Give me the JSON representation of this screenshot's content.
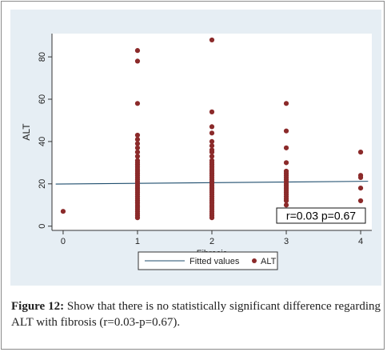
{
  "caption": {
    "label": "Figure 12:",
    "text": " Show that there is no statistically significant difference regarding ALT with fibrosis (r=0.03-p=0.67)."
  },
  "annotation": "r=0.03  p=0.67",
  "colors": {
    "panel_bg": "#e6eef4",
    "plot_bg": "#ffffff",
    "points": "#8b2a2a",
    "fit_line": "#1f4e6e"
  },
  "chart_data": {
    "type": "scatter",
    "title": "",
    "xlabel": "Fibrosis",
    "ylabel": "ALT",
    "xlim": [
      -0.15,
      4.15
    ],
    "ylim": [
      -2,
      91
    ],
    "x_ticks": [
      0,
      1,
      2,
      3,
      4
    ],
    "y_ticks": [
      0,
      20,
      40,
      60,
      80
    ],
    "grid": false,
    "legend_position": "bottom",
    "series": [
      {
        "name": "ALT",
        "type": "scatter",
        "points": [
          [
            0,
            7
          ],
          [
            1,
            83
          ],
          [
            1,
            78
          ],
          [
            1,
            58
          ],
          [
            1,
            43
          ],
          [
            1,
            41
          ],
          [
            1,
            39
          ],
          [
            1,
            37
          ],
          [
            1,
            35
          ],
          [
            1,
            33
          ],
          [
            1,
            31
          ],
          [
            1,
            30
          ],
          [
            1,
            29
          ],
          [
            1,
            28
          ],
          [
            1,
            27
          ],
          [
            1,
            26
          ],
          [
            1,
            25
          ],
          [
            1,
            24
          ],
          [
            1,
            23
          ],
          [
            1,
            22
          ],
          [
            1,
            21
          ],
          [
            1,
            20
          ],
          [
            1,
            19
          ],
          [
            1,
            18
          ],
          [
            1,
            17
          ],
          [
            1,
            16
          ],
          [
            1,
            15
          ],
          [
            1,
            14
          ],
          [
            1,
            13
          ],
          [
            1,
            12
          ],
          [
            1,
            11
          ],
          [
            1,
            10
          ],
          [
            1,
            9
          ],
          [
            1,
            8
          ],
          [
            1,
            7
          ],
          [
            1,
            6
          ],
          [
            1,
            5
          ],
          [
            1,
            4
          ],
          [
            2,
            88
          ],
          [
            2,
            54
          ],
          [
            2,
            47
          ],
          [
            2,
            44
          ],
          [
            2,
            40
          ],
          [
            2,
            38
          ],
          [
            2,
            36
          ],
          [
            2,
            35
          ],
          [
            2,
            33
          ],
          [
            2,
            31
          ],
          [
            2,
            30
          ],
          [
            2,
            29
          ],
          [
            2,
            28
          ],
          [
            2,
            27
          ],
          [
            2,
            26
          ],
          [
            2,
            25
          ],
          [
            2,
            24
          ],
          [
            2,
            23
          ],
          [
            2,
            22
          ],
          [
            2,
            21
          ],
          [
            2,
            20
          ],
          [
            2,
            19
          ],
          [
            2,
            18
          ],
          [
            2,
            17
          ],
          [
            2,
            16
          ],
          [
            2,
            15
          ],
          [
            2,
            14
          ],
          [
            2,
            13
          ],
          [
            2,
            12
          ],
          [
            2,
            11
          ],
          [
            2,
            10
          ],
          [
            2,
            9
          ],
          [
            2,
            8
          ],
          [
            2,
            7
          ],
          [
            2,
            6
          ],
          [
            2,
            5
          ],
          [
            2,
            4
          ],
          [
            3,
            58
          ],
          [
            3,
            45
          ],
          [
            3,
            37
          ],
          [
            3,
            30
          ],
          [
            3,
            26
          ],
          [
            3,
            25
          ],
          [
            3,
            24
          ],
          [
            3,
            23
          ],
          [
            3,
            22
          ],
          [
            3,
            21
          ],
          [
            3,
            20
          ],
          [
            3,
            19
          ],
          [
            3,
            18
          ],
          [
            3,
            17
          ],
          [
            3,
            16
          ],
          [
            3,
            15
          ],
          [
            3,
            14
          ],
          [
            3,
            13
          ],
          [
            3,
            12
          ],
          [
            3,
            10
          ],
          [
            4,
            35
          ],
          [
            4,
            24
          ],
          [
            4,
            23
          ],
          [
            4,
            18
          ],
          [
            4,
            12
          ]
        ]
      },
      {
        "name": "Fitted values",
        "type": "line",
        "points": [
          [
            -0.1,
            19.9
          ],
          [
            4.1,
            21.2
          ]
        ]
      }
    ]
  }
}
